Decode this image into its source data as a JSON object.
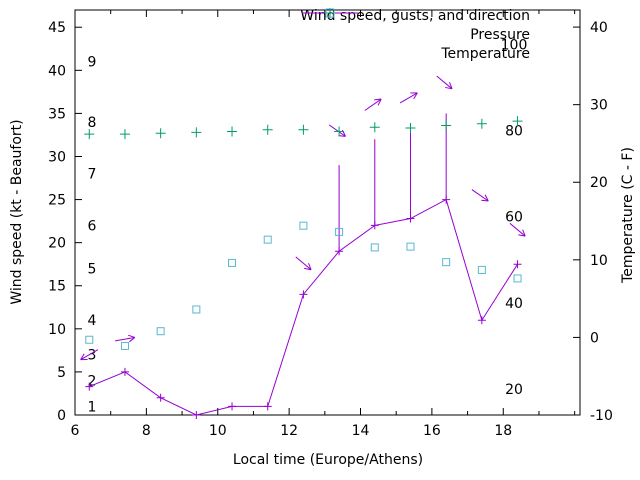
{
  "chart": {
    "legend": {
      "items": [
        {
          "label": "Wind speed, gusts, and direction"
        },
        {
          "label": "Pressure"
        },
        {
          "label": "Temperature"
        }
      ]
    },
    "colors": {
      "wind": "#9400d3",
      "pressure": "#009e60",
      "temperature": "#56b9d0",
      "axis": "#000000",
      "text": "#000000"
    },
    "axes": {
      "x": {
        "label": "Local time (Europe/Athens)",
        "min": 6,
        "max": 20.15,
        "major_ticks": [
          6,
          8,
          10,
          12,
          14,
          16,
          18
        ],
        "minor_tick_step": 1
      },
      "y_left": {
        "label": "Wind speed (kt - Beaufort)",
        "min": 0,
        "max": 47,
        "major_ticks": [
          0,
          5,
          10,
          15,
          20,
          25,
          30,
          35,
          40,
          45
        ],
        "beaufort_scale_labels": [
          {
            "bft": "1",
            "kt": 1
          },
          {
            "bft": "2",
            "kt": 4
          },
          {
            "bft": "3",
            "kt": 7
          },
          {
            "bft": "4",
            "kt": 11
          },
          {
            "bft": "5",
            "kt": 17
          },
          {
            "bft": "6",
            "kt": 22
          },
          {
            "bft": "7",
            "kt": 28
          },
          {
            "bft": "8",
            "kt": 34
          },
          {
            "bft": "9",
            "kt": 41
          }
        ]
      },
      "y_right": {
        "label": "Temperature (C - F)",
        "min_c": -10,
        "max_c": 42.2,
        "ticks_c": [
          -10,
          0,
          10,
          20,
          30,
          40
        ],
        "inner_ticks_f": [
          20,
          40,
          60,
          80,
          100
        ]
      }
    }
  },
  "chart_data": {
    "type": "line",
    "x_hours": [
      6.4,
      7.4,
      8.4,
      9.4,
      10.4,
      11.4,
      12.4,
      13.4,
      14.4,
      15.4,
      16.4,
      17.4,
      18.4
    ],
    "series": [
      {
        "name": "wind_speed_kt",
        "color_key": "wind",
        "values": [
          3.3,
          5,
          2,
          0,
          1,
          1,
          14,
          19,
          22,
          22.8,
          25,
          11,
          17.5
        ]
      },
      {
        "name": "wind_gust_kt",
        "color_key": "wind",
        "values": [
          null,
          null,
          null,
          null,
          null,
          null,
          null,
          29,
          32,
          33.5,
          35,
          null,
          null
        ]
      },
      {
        "name": "pressure_plotted_left_axis_units",
        "color_key": "pressure",
        "values": [
          32.6,
          32.6,
          32.7,
          32.8,
          32.9,
          33.1,
          33.1,
          32.9,
          33.4,
          33.3,
          33.6,
          33.8,
          34.1
        ]
      },
      {
        "name": "temperature_c",
        "color_key": "temperature",
        "values": [
          -0.3,
          -1.1,
          0.8,
          3.6,
          9.6,
          12.6,
          14.4,
          13.6,
          11.6,
          11.7,
          9.7,
          8.7,
          7.6
        ]
      }
    ],
    "wind_direction_arrows": {
      "angle_convention": "degrees; 0 = pointing right on screen, positive clockwise",
      "arrows": [
        {
          "x": 6.4,
          "kt": 7,
          "angle_deg": 150
        },
        {
          "x": 7.4,
          "kt": 8.8,
          "angle_deg": 350
        },
        {
          "x": 12.4,
          "kt": 17.6,
          "angle_deg": 40
        },
        {
          "x": 13.35,
          "kt": 33,
          "angle_deg": 35
        },
        {
          "x": 14.35,
          "kt": 36,
          "angle_deg": 325
        },
        {
          "x": 15.35,
          "kt": 36.8,
          "angle_deg": 330
        },
        {
          "x": 16.35,
          "kt": 38.6,
          "angle_deg": 40
        },
        {
          "x": 17.35,
          "kt": 25.5,
          "angle_deg": 35
        },
        {
          "x": 18.4,
          "kt": 21.5,
          "angle_deg": 40
        }
      ]
    }
  }
}
